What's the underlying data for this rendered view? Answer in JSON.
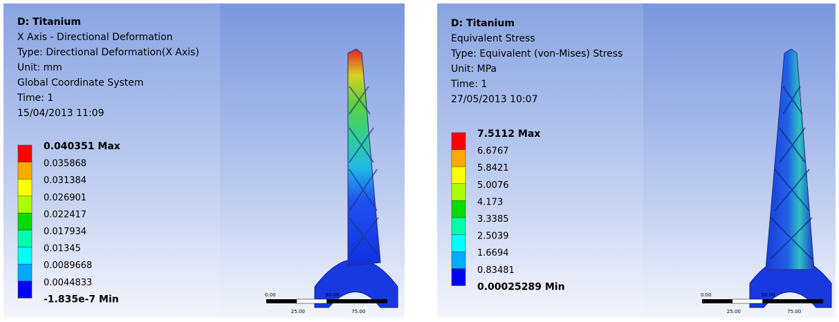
{
  "panels": [
    {
      "title": "D: Titanium",
      "lines": [
        "X Axis - Directional Deformation",
        "Type: Directional Deformation(X Axis)",
        "Unit: mm",
        "Global Coordinate System",
        "Time: 1",
        "15/04/2013 11:09"
      ],
      "legend": [
        "0.040351 Max",
        "0.035868",
        "0.031384",
        "0.026901",
        "0.022417",
        "0.017934",
        "0.01345",
        "0.0089668",
        "0.0044833",
        "-1.835e-7 Min"
      ],
      "scale_top": [
        "0.00",
        "50.00"
      ],
      "scale_bottom": [
        "25.00",
        "75.00"
      ]
    },
    {
      "title": "D: Titanium",
      "lines": [
        "Equivalent Stress",
        "Type: Equivalent (von-Mises) Stress",
        "Unit: MPa",
        "Time: 1",
        "27/05/2013 10:07"
      ],
      "legend": [
        "7.5112 Max",
        "6.6767",
        "5.8421",
        "5.0076",
        "4.173",
        "3.3385",
        "2.5039",
        "1.6694",
        "0.83481",
        "0.00025289 Min"
      ],
      "scale_top": [
        "0.00",
        "50.00"
      ],
      "scale_bottom": [
        "25.00",
        "75.00"
      ]
    }
  ]
}
